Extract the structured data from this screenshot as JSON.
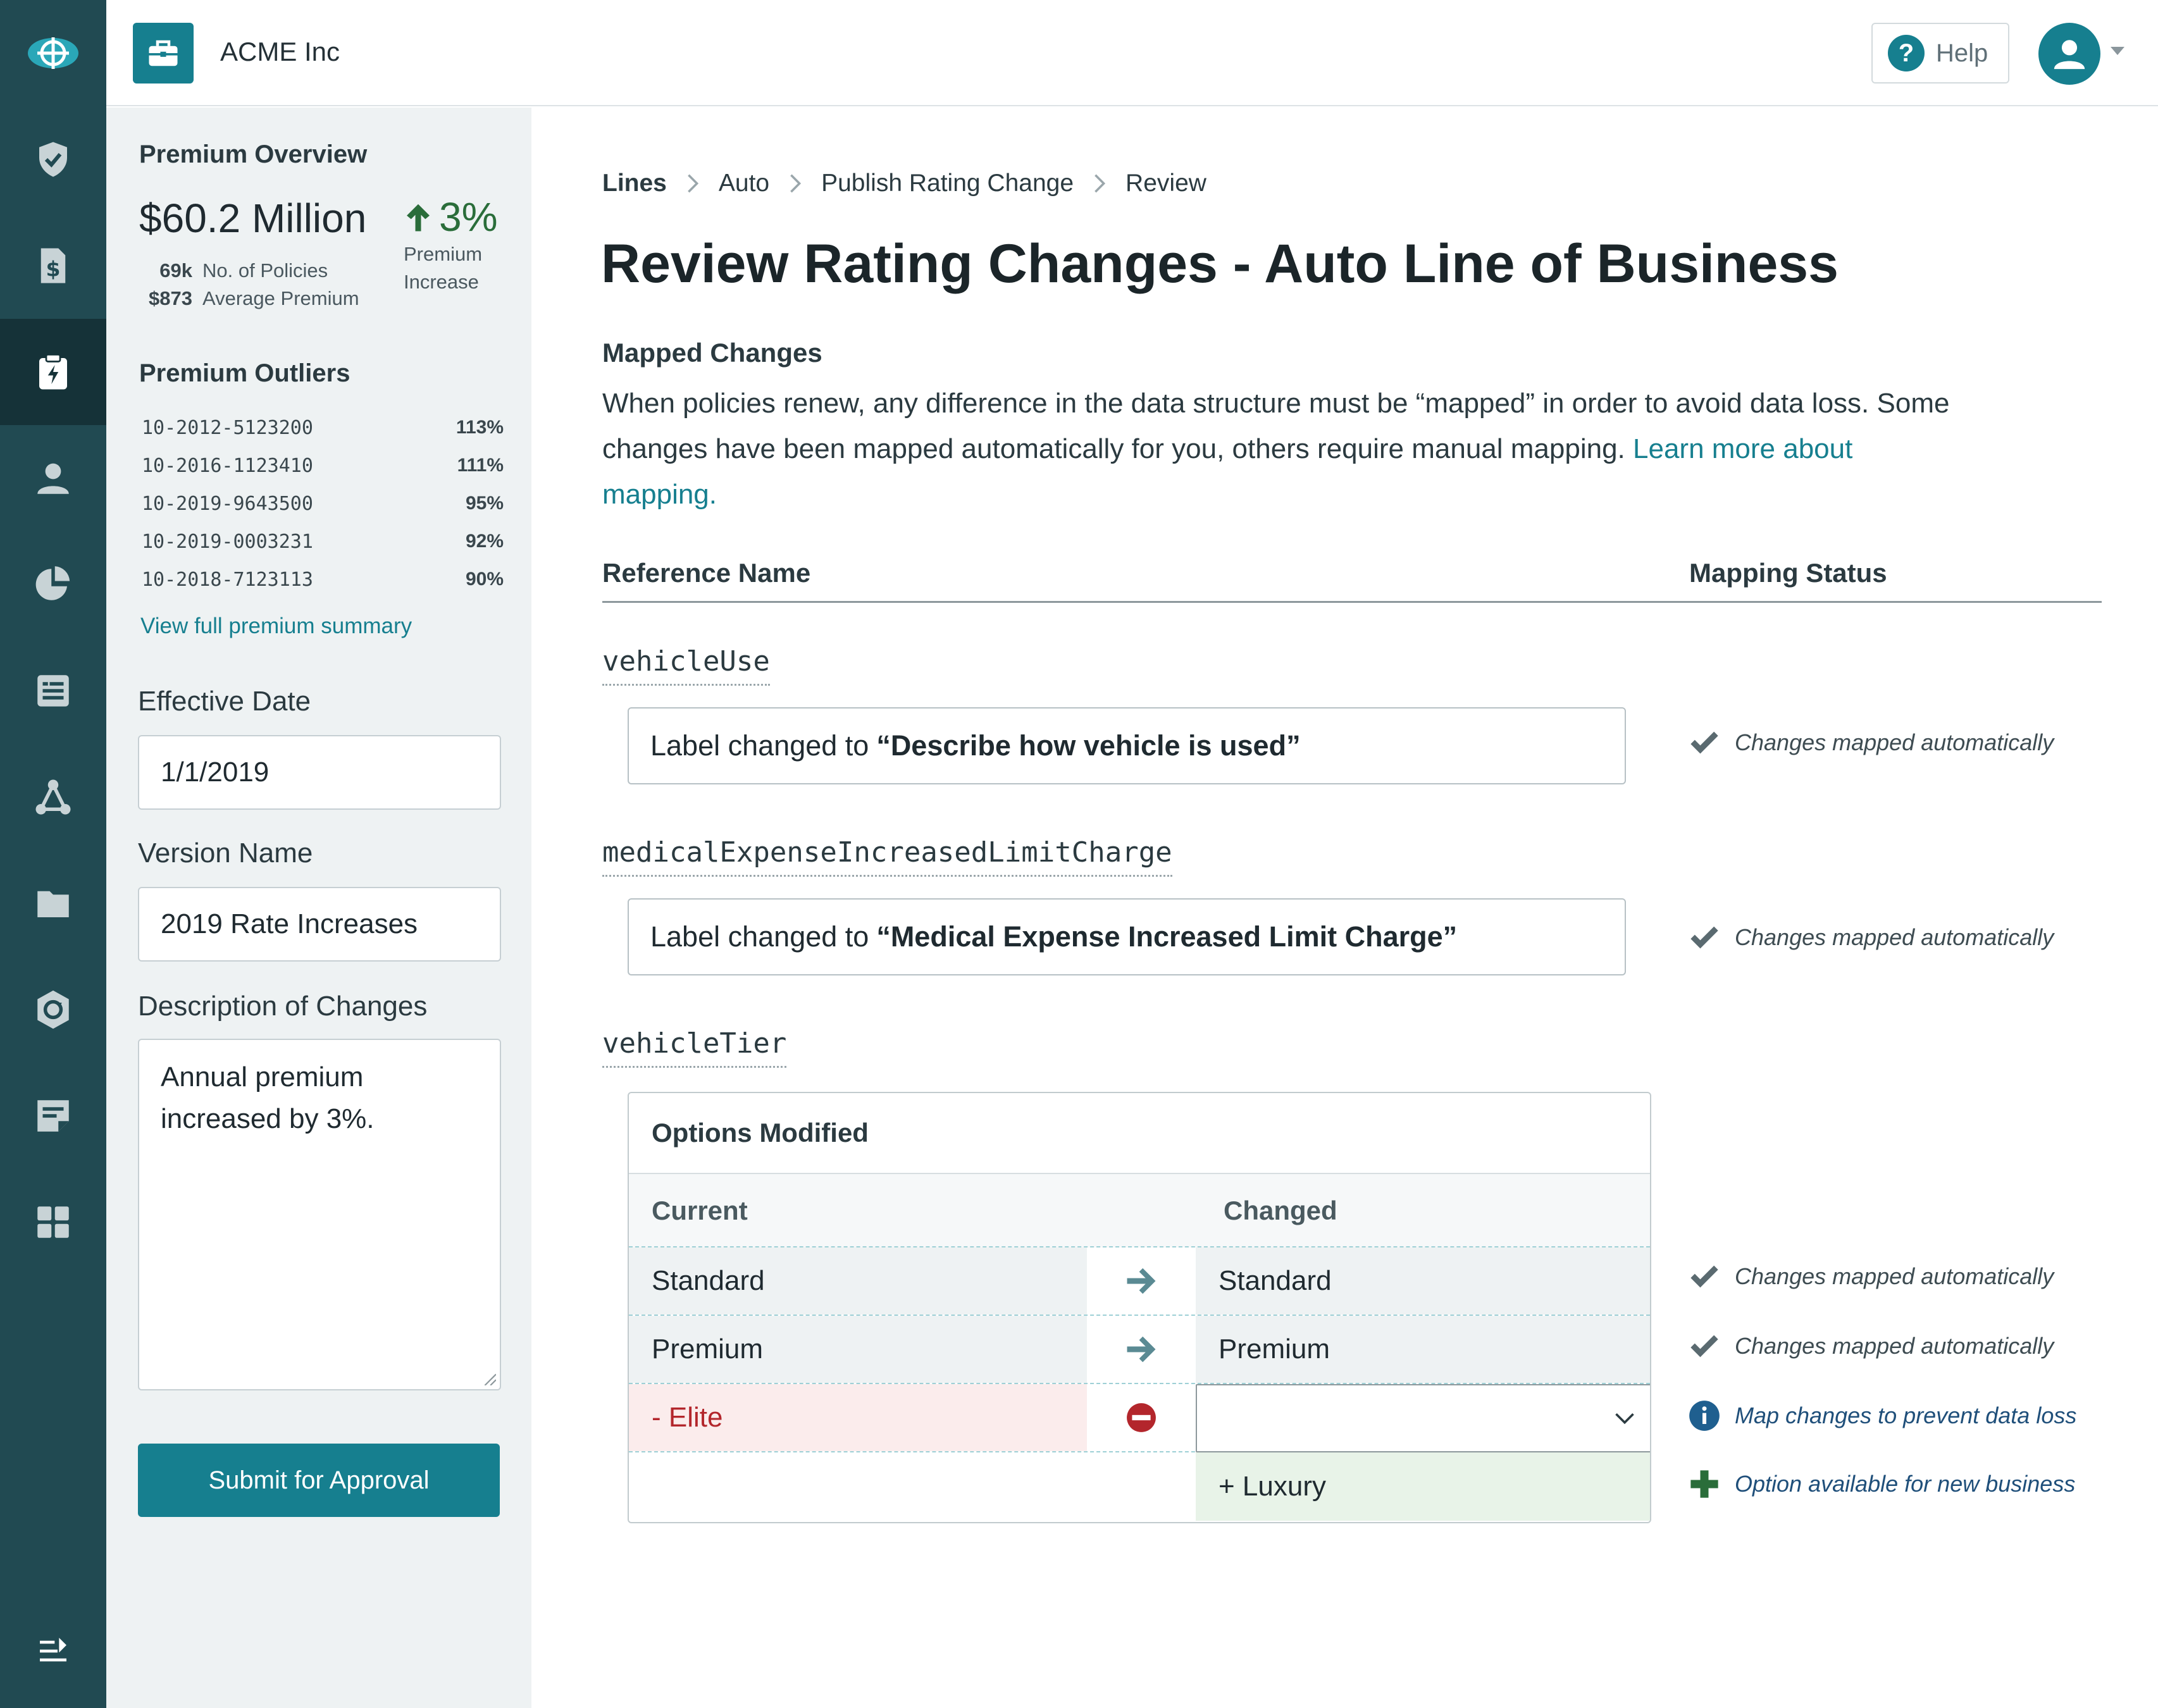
{
  "header": {
    "company": "ACME Inc",
    "help_label": "Help",
    "help_glyph": "?"
  },
  "sidebar": {
    "items": [
      {
        "icon": "shield-check-icon",
        "active": false
      },
      {
        "icon": "dollar-document-icon",
        "active": false
      },
      {
        "icon": "rating-clipboard-icon",
        "active": true
      },
      {
        "icon": "person-icon",
        "active": false
      },
      {
        "icon": "pie-chart-icon",
        "active": false
      },
      {
        "icon": "list-document-icon",
        "active": false
      },
      {
        "icon": "network-icon",
        "active": false
      },
      {
        "icon": "folder-icon",
        "active": false
      },
      {
        "icon": "sync-badge-icon",
        "active": false
      },
      {
        "icon": "edit-note-icon",
        "active": false
      },
      {
        "icon": "apps-grid-icon",
        "active": false
      }
    ]
  },
  "panel": {
    "overview_title": "Premium Overview",
    "premium_total": "$60.2 Million",
    "policies_value": "69k",
    "policies_label": "No. of Policies",
    "avg_value": "$873",
    "avg_label": "Average Premium",
    "increase_pct": "3%",
    "increase_caption_1": "Premium",
    "increase_caption_2": "Increase",
    "outliers_title": "Premium Outliers",
    "outliers": [
      {
        "policy": "10-2012-5123200",
        "pct": "113%"
      },
      {
        "policy": "10-2016-1123410",
        "pct": "111%"
      },
      {
        "policy": "10-2019-9643500",
        "pct": "95%"
      },
      {
        "policy": "10-2019-0003231",
        "pct": "92%"
      },
      {
        "policy": "10-2018-7123113",
        "pct": "90%"
      }
    ],
    "summary_link": "View full premium summary",
    "effective_date_label": "Effective Date",
    "effective_date_value": "1/1/2019",
    "version_name_label": "Version Name",
    "version_name_value": "2019 Rate Increases",
    "description_label": "Description of Changes",
    "description_value": "Annual premium increased by 3%.",
    "submit_label": "Submit for Approval"
  },
  "main": {
    "breadcrumbs": [
      "Lines",
      "Auto",
      "Publish Rating Change",
      "Review"
    ],
    "title": "Review Rating Changes - Auto Line of Business",
    "section_title": "Mapped Changes",
    "intro_text": "When policies renew, any difference in the data structure must be “mapped” in order to avoid data loss. Some changes have been mapped automatically for you, others require manual mapping.",
    "intro_link": "Learn more about mapping.",
    "col_reference": "Reference Name",
    "col_status": "Mapping Status",
    "changes": [
      {
        "reference": "vehicleUse",
        "label_prefix": "Label changed to",
        "label_value": "“Describe how vehicle is used”",
        "status": "Changes mapped automatically"
      },
      {
        "reference": "medicalExpenseIncreasedLimitCharge",
        "label_prefix": "Label changed to",
        "label_value": "“Medical Expense Increased Limit Charge”",
        "status": "Changes mapped automatically"
      }
    ],
    "options_change": {
      "reference": "vehicleTier",
      "title": "Options  Modified",
      "col_current": "Current",
      "col_changed": "Changed",
      "rows": [
        {
          "current": "Standard",
          "changed": "Standard",
          "status": "Changes mapped automatically"
        },
        {
          "current": "Premium",
          "changed": "Premium",
          "status": "Changes mapped automatically"
        },
        {
          "current": "- Elite",
          "changed": "",
          "status": "Map changes to prevent data loss"
        },
        {
          "current": "",
          "changed": "+ Luxury",
          "status": "Option available for new business"
        }
      ]
    }
  },
  "colors": {
    "rail": "#214a52",
    "accent": "#167f8f",
    "success": "#2a6d3a",
    "removed": "#b3262c",
    "info": "#1f5f8f"
  }
}
